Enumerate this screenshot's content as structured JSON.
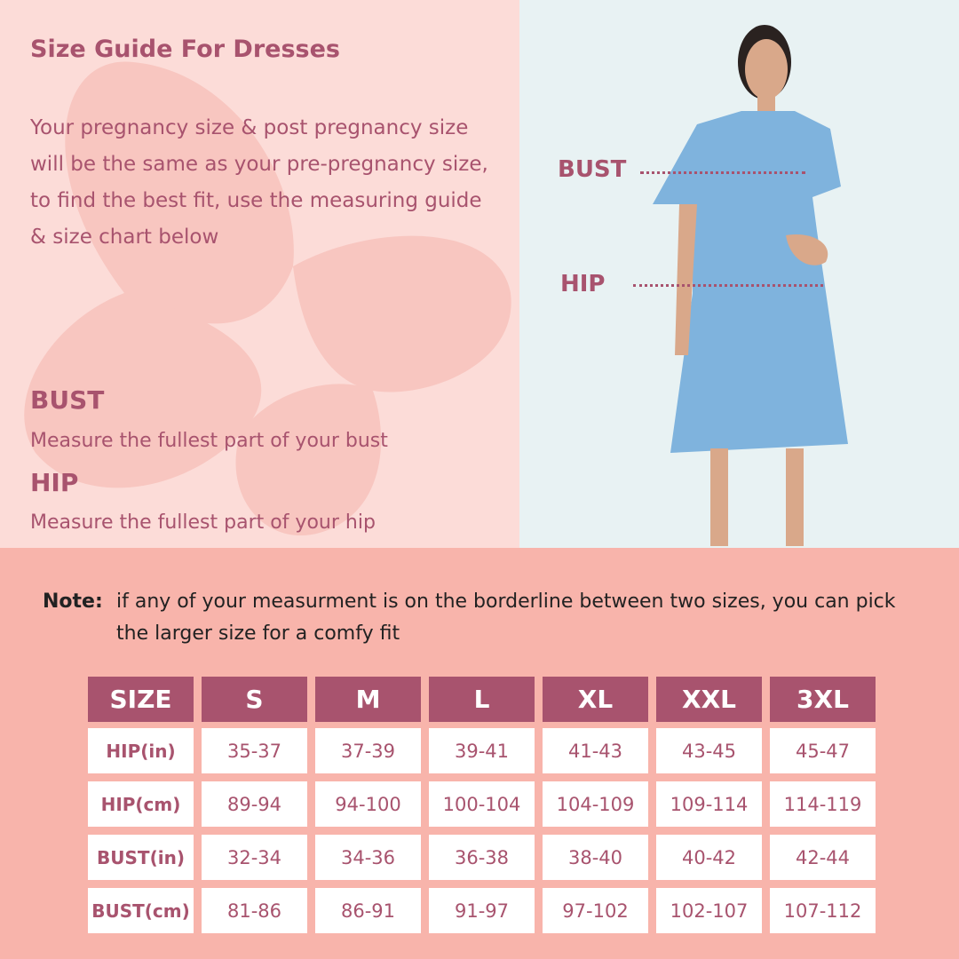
{
  "title": "Size Guide For Dresses",
  "intro": "Your pregnancy size & post pregnancy size will be the same as your pre-pregnancy size, to find the best fit, use the measuring guide & size chart below",
  "bust": {
    "heading": "BUST",
    "desc": "Measure the fullest part of your bust"
  },
  "hip": {
    "heading": "HIP",
    "desc": "Measure the fullest part of your hip"
  },
  "figure": {
    "bust_label": "BUST",
    "hip_label": "HIP"
  },
  "note": {
    "label": "Note:",
    "text": "if any of your measurment is on the borderline between two sizes, you can pick the larger size for a comfy fit"
  },
  "colors": {
    "accent": "#a8536e",
    "background": "#f8b4ab",
    "panel": "#fcdcd8",
    "photo_bg": "#e8f2f3"
  },
  "table": {
    "headers": [
      "SIZE",
      "S",
      "M",
      "L",
      "XL",
      "XXL",
      "3XL"
    ],
    "rows": [
      {
        "label": "HIP(in)",
        "values": [
          "35-37",
          "37-39",
          "39-41",
          "41-43",
          "43-45",
          "45-47"
        ]
      },
      {
        "label": "HIP(cm)",
        "values": [
          "89-94",
          "94-100",
          "100-104",
          "104-109",
          "109-114",
          "114-119"
        ]
      },
      {
        "label": "BUST(in)",
        "values": [
          "32-34",
          "34-36",
          "36-38",
          "38-40",
          "40-42",
          "42-44"
        ]
      },
      {
        "label": "BUST(cm)",
        "values": [
          "81-86",
          "86-91",
          "91-97",
          "97-102",
          "102-107",
          "107-112"
        ]
      }
    ]
  }
}
